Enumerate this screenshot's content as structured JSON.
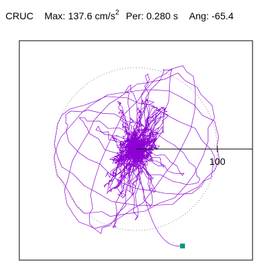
{
  "header": {
    "station": "CRUC",
    "max_label": "Max:",
    "max_value": "137.6",
    "max_unit": "cm/s",
    "max_unit_exp": "2",
    "per_label": "Per:",
    "per_value": "0.280",
    "per_unit": "s",
    "ang_label": "Ang:",
    "ang_value": "-65.4"
  },
  "chart_data": {
    "type": "polar_orbit",
    "max_amplitude": 137.6,
    "max_unit": "cm/s2",
    "period_s": 0.28,
    "angle_deg": -65.4,
    "reference_circle_radius": 100,
    "axis_tick_labels": [
      "100"
    ],
    "grid": "dotted reference circle",
    "colors": {
      "trace": "#8c00d4",
      "end_marker": "#009977",
      "frame": "#000000",
      "reference_circle": "#888888"
    }
  }
}
